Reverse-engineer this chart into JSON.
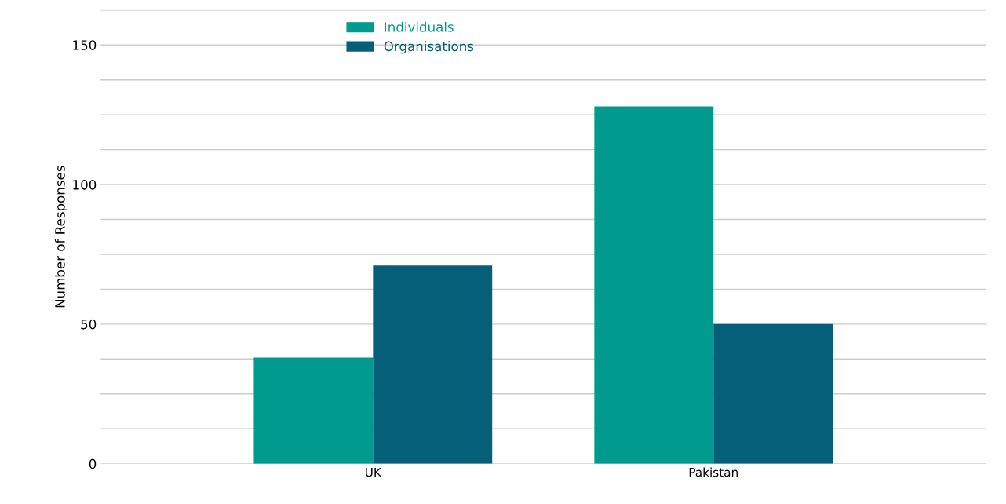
{
  "chart_data": {
    "type": "bar",
    "ylabel": "Number of Responses",
    "categories": [
      "UK",
      "Pakistan"
    ],
    "series": [
      {
        "name": "Individuals",
        "color": "#009a8e",
        "values": [
          38,
          128
        ]
      },
      {
        "name": "Organisations",
        "color": "#065f78",
        "values": [
          71,
          50
        ]
      }
    ],
    "ylim": [
      0,
      162.5
    ],
    "yticks": [
      0,
      {
        "value": 12.5,
        "label": null
      },
      {
        "value": 25,
        "label": null
      },
      {
        "value": 37.5,
        "label": null
      },
      50,
      {
        "value": 62.5,
        "label": null
      },
      {
        "value": 75,
        "label": null
      },
      {
        "value": 87.5,
        "label": null
      },
      100,
      {
        "value": 112.5,
        "label": null
      },
      {
        "value": 125,
        "label": null
      },
      {
        "value": 137.5,
        "label": null
      },
      150,
      {
        "value": 162.5,
        "label": null
      }
    ],
    "grid": "y",
    "legend": "top"
  }
}
